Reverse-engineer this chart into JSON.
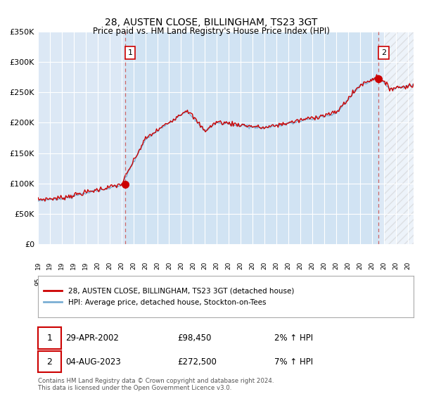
{
  "title": "28, AUSTEN CLOSE, BILLINGHAM, TS23 3GT",
  "subtitle": "Price paid vs. HM Land Registry's House Price Index (HPI)",
  "ylim": [
    0,
    350000
  ],
  "xlim_start": 1995.0,
  "xlim_end": 2026.5,
  "hpi_color": "#7bafd4",
  "price_color": "#cc0000",
  "dot_color": "#cc0000",
  "vline_color": "#cc6666",
  "bg_color": "#dce8f5",
  "grid_color": "#ffffff",
  "legend_label_red": "28, AUSTEN CLOSE, BILLINGHAM, TS23 3GT (detached house)",
  "legend_label_blue": "HPI: Average price, detached house, Stockton-on-Tees",
  "transaction1_date": "29-APR-2002",
  "transaction1_price": "£98,450",
  "transaction1_hpi": "2% ↑ HPI",
  "transaction1_year": 2002.33,
  "transaction1_value": 98450,
  "transaction2_date": "04-AUG-2023",
  "transaction2_price": "£272,500",
  "transaction2_hpi": "7% ↑ HPI",
  "transaction2_year": 2023.58,
  "transaction2_value": 272500,
  "footnote1": "Contains HM Land Registry data © Crown copyright and database right 2024.",
  "footnote2": "This data is licensed under the Open Government Licence v3.0."
}
